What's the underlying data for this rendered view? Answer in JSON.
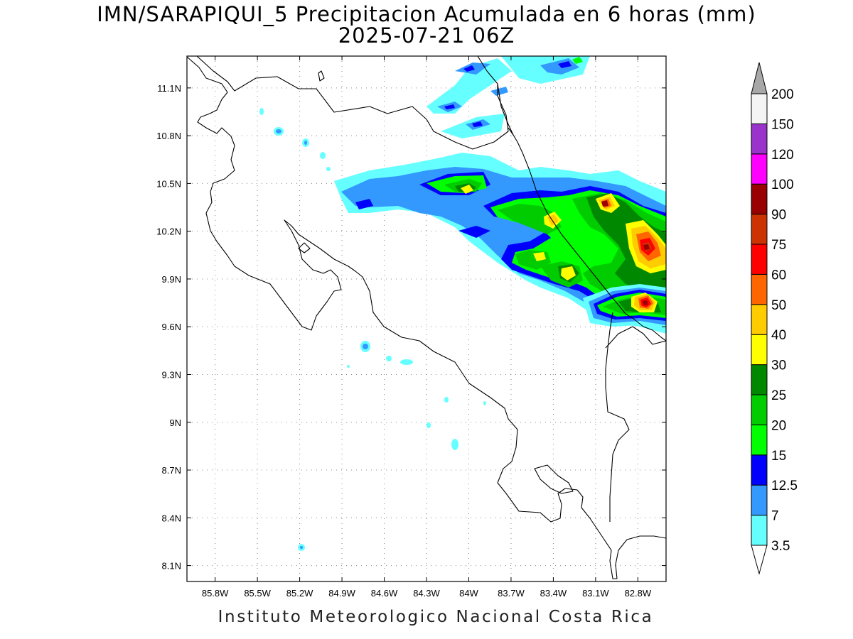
{
  "title": {
    "line1": "IMN/SARAPIQUI_5 Precipitacion Acumulada en 6 horas (mm)",
    "line2": "2025-07-21 06Z"
  },
  "footer": "Instituto Meteorologico Nacional Costa Rica",
  "map": {
    "lon_range": [
      -86.0,
      -82.6
    ],
    "lat_range": [
      8.0,
      11.3
    ],
    "x_ticks": [
      "85.8W",
      "85.5W",
      "85.2W",
      "84.9W",
      "84.6W",
      "84.3W",
      "84W",
      "83.7W",
      "83.4W",
      "83.1W",
      "82.8W"
    ],
    "y_ticks": [
      "11.1N",
      "10.8N",
      "10.5N",
      "10.2N",
      "9.9N",
      "9.6N",
      "9.3N",
      "9N",
      "8.7N",
      "8.4N",
      "8.1N"
    ],
    "grid": "dotted"
  },
  "legend": {
    "levels": [
      "3.5",
      "7",
      "12.5",
      "15",
      "20",
      "25",
      "30",
      "40",
      "50",
      "60",
      "75",
      "90",
      "100",
      "120",
      "150",
      "200"
    ],
    "colors": [
      "#66ffff",
      "#3399ff",
      "#0000ff",
      "#00ff00",
      "#00cc00",
      "#008800",
      "#ffff00",
      "#ffcc00",
      "#ff6600",
      "#ff0000",
      "#cc3300",
      "#990000",
      "#ff00ff",
      "#9933cc",
      "#f4f4f4"
    ],
    "over_color": "#a8a8a8",
    "under_color": "#ffffff"
  }
}
